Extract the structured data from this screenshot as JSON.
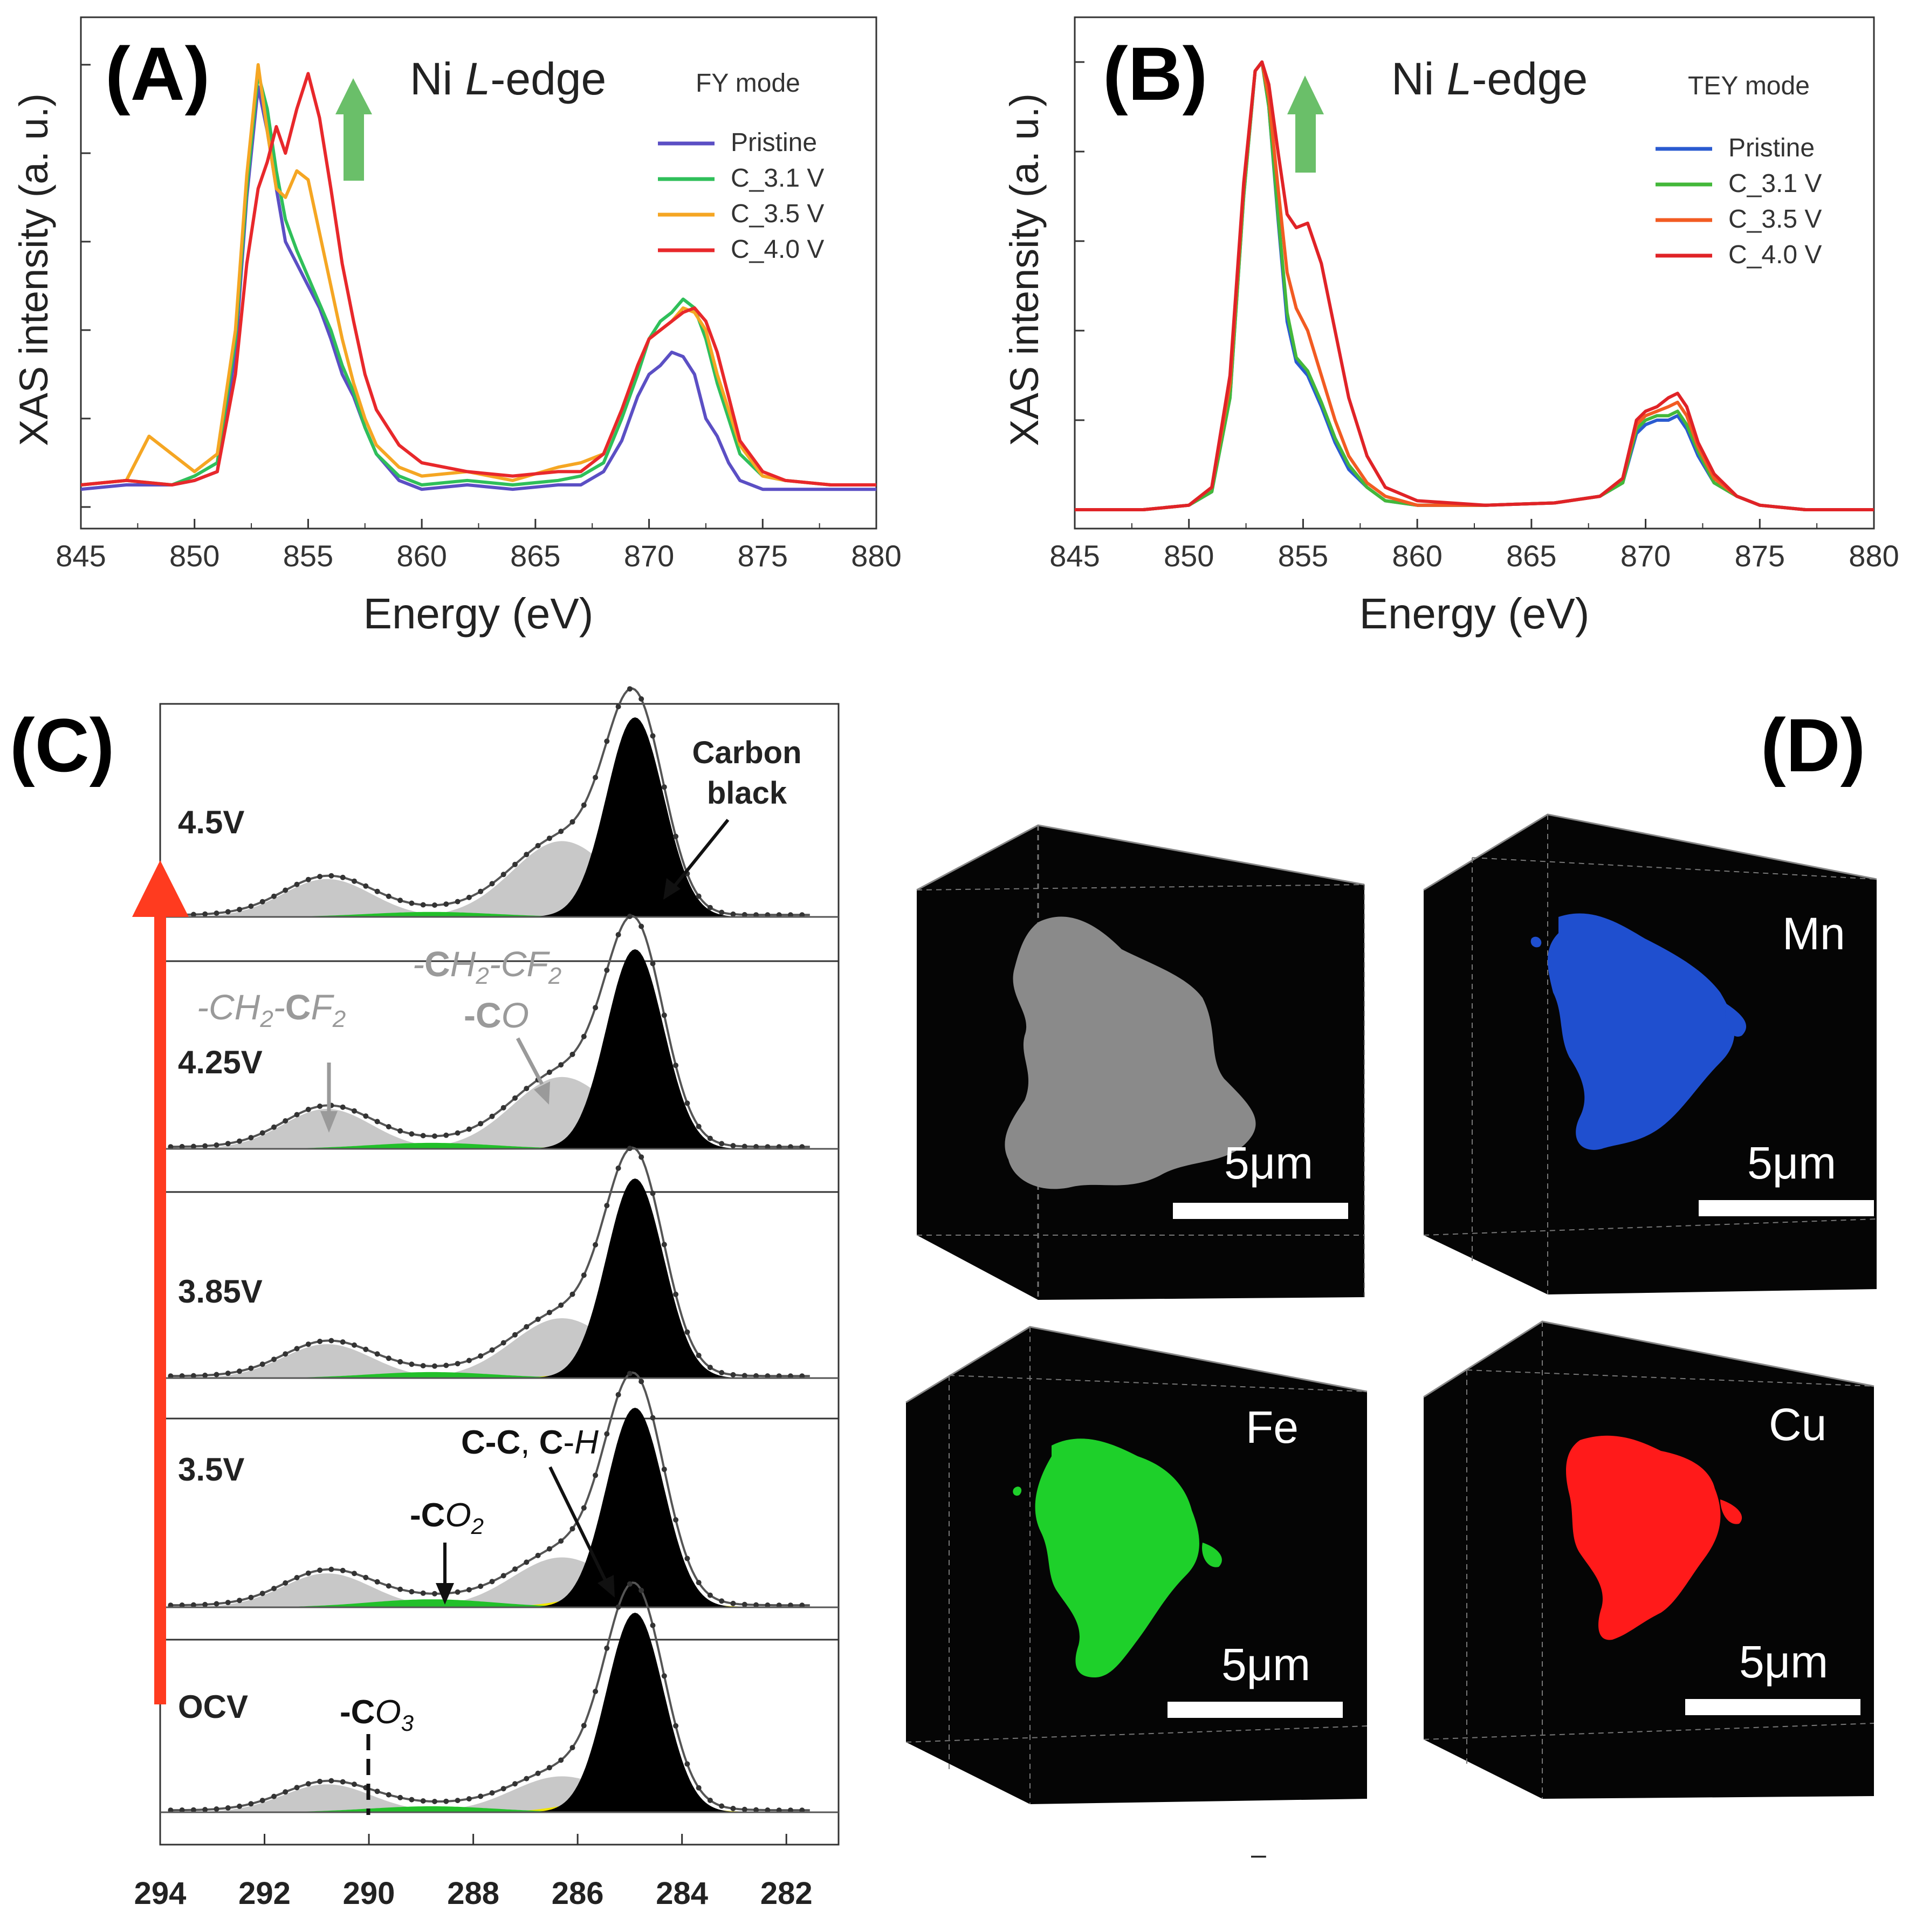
{
  "colors": {
    "pristine": "#5b4fc4",
    "c31": "#2fbf5a",
    "c35": "#f5a623",
    "c40": "#e8282b",
    "pristineB": "#2a5bd0",
    "c31B": "#43b83a",
    "c35B": "#f25b22",
    "c40B": "#e02327",
    "arrowGreen": "#6abf69",
    "arrowRed": "#ff3b1f",
    "mn": "#1f4fcf",
    "fe": "#1ed02a",
    "cu": "#ff1a1a",
    "gray_particle": "#8a8a8a"
  },
  "panels": {
    "A": {
      "letter": "(A)",
      "title_pre": "Ni ",
      "title_it": "L",
      "title_post": "-edge",
      "mode": "FY mode"
    },
    "B": {
      "letter": "(B)",
      "title_pre": "Ni ",
      "title_it": "L",
      "title_post": "-edge",
      "mode": "TEY mode"
    },
    "C": {
      "letter": "(C)"
    },
    "D": {
      "letter": "(D)"
    }
  },
  "chart_data": [
    {
      "id": "A",
      "type": "line",
      "xlabel": "Energy (eV)",
      "ylabel": "XAS intensity (a. u.)",
      "xlim": [
        845,
        880
      ],
      "xticks": [
        "845",
        "850",
        "855",
        "860",
        "865",
        "870",
        "875",
        "880"
      ],
      "series": [
        {
          "name": "Pristine",
          "color_key": "pristine",
          "x": [
            845,
            847,
            849,
            850,
            851,
            851.8,
            852.3,
            852.8,
            853.2,
            853.6,
            854,
            854.5,
            855,
            855.5,
            856,
            856.5,
            857,
            857.5,
            858,
            859,
            860,
            862,
            864,
            866,
            867,
            868,
            868.8,
            869.5,
            870,
            870.5,
            871,
            871.5,
            872,
            872.5,
            873,
            873.5,
            874,
            875,
            876,
            878,
            880
          ],
          "y": [
            0.04,
            0.05,
            0.05,
            0.06,
            0.08,
            0.35,
            0.7,
            0.95,
            0.85,
            0.72,
            0.6,
            0.55,
            0.5,
            0.45,
            0.38,
            0.3,
            0.25,
            0.18,
            0.12,
            0.06,
            0.04,
            0.05,
            0.04,
            0.05,
            0.05,
            0.08,
            0.15,
            0.25,
            0.3,
            0.32,
            0.35,
            0.34,
            0.3,
            0.2,
            0.16,
            0.1,
            0.06,
            0.04,
            0.04,
            0.04,
            0.04
          ]
        },
        {
          "name": "C_3.1 V",
          "color_key": "c31",
          "x": [
            845,
            847,
            849,
            850,
            851,
            851.8,
            852.3,
            852.8,
            853.2,
            853.6,
            854,
            854.5,
            855,
            855.5,
            856,
            856.5,
            857,
            857.5,
            858,
            859,
            860,
            862,
            864,
            866,
            867,
            868,
            868.8,
            869.5,
            870,
            870.5,
            871,
            871.5,
            872,
            872.5,
            873,
            873.5,
            874,
            875,
            876,
            878,
            880
          ],
          "y": [
            0.05,
            0.06,
            0.05,
            0.07,
            0.1,
            0.38,
            0.72,
            0.98,
            0.9,
            0.76,
            0.65,
            0.58,
            0.52,
            0.46,
            0.4,
            0.32,
            0.26,
            0.18,
            0.12,
            0.07,
            0.05,
            0.06,
            0.05,
            0.06,
            0.07,
            0.1,
            0.2,
            0.3,
            0.38,
            0.42,
            0.44,
            0.47,
            0.45,
            0.38,
            0.28,
            0.2,
            0.12,
            0.07,
            0.06,
            0.05,
            0.05
          ]
        },
        {
          "name": "C_3.5 V",
          "color_key": "c35",
          "x": [
            845,
            847,
            848,
            849,
            850,
            851,
            851.8,
            852.3,
            852.8,
            853.2,
            853.6,
            854,
            854.5,
            855,
            855.5,
            856,
            856.5,
            857,
            857.5,
            858,
            859,
            860,
            862,
            864,
            866,
            867,
            868,
            868.8,
            869.5,
            870,
            870.5,
            871,
            871.5,
            872,
            872.5,
            873,
            873.5,
            874,
            875,
            876,
            878,
            880
          ],
          "y": [
            0.05,
            0.06,
            0.16,
            0.12,
            0.08,
            0.12,
            0.4,
            0.75,
            1.0,
            0.85,
            0.72,
            0.7,
            0.76,
            0.74,
            0.62,
            0.5,
            0.38,
            0.28,
            0.2,
            0.14,
            0.09,
            0.07,
            0.08,
            0.06,
            0.09,
            0.1,
            0.12,
            0.22,
            0.32,
            0.38,
            0.4,
            0.42,
            0.45,
            0.44,
            0.4,
            0.3,
            0.22,
            0.14,
            0.07,
            0.06,
            0.05,
            0.05
          ]
        },
        {
          "name": "C_4.0 V",
          "color_key": "c40",
          "x": [
            845,
            847,
            849,
            850,
            851,
            851.8,
            852.3,
            852.8,
            853.2,
            853.6,
            854,
            854.5,
            855,
            855.5,
            856,
            856.5,
            857,
            857.5,
            858,
            859,
            860,
            862,
            864,
            866,
            867,
            868,
            868.8,
            869.5,
            870,
            870.5,
            871,
            871.5,
            872,
            872.5,
            873,
            873.5,
            874,
            875,
            876,
            878,
            880
          ],
          "y": [
            0.05,
            0.06,
            0.05,
            0.06,
            0.08,
            0.3,
            0.55,
            0.72,
            0.78,
            0.86,
            0.8,
            0.9,
            0.98,
            0.88,
            0.72,
            0.55,
            0.42,
            0.3,
            0.22,
            0.14,
            0.1,
            0.08,
            0.07,
            0.08,
            0.08,
            0.12,
            0.22,
            0.32,
            0.38,
            0.4,
            0.42,
            0.44,
            0.45,
            0.42,
            0.35,
            0.25,
            0.15,
            0.08,
            0.06,
            0.05,
            0.05
          ]
        }
      ]
    },
    {
      "id": "B",
      "type": "line",
      "xlabel": "Energy (eV)",
      "ylabel": "XAS intensity (a. u.)",
      "xlim": [
        845,
        880
      ],
      "xticks": [
        "845",
        "850",
        "855",
        "860",
        "865",
        "870",
        "875",
        "880"
      ],
      "series": [
        {
          "name": "Pristine",
          "color_key": "pristineB",
          "x": [
            845,
            848,
            850,
            851,
            851.8,
            852.4,
            852.9,
            853.2,
            853.5,
            853.9,
            854.3,
            854.7,
            855.2,
            855.8,
            856.4,
            857,
            857.8,
            858.6,
            860,
            863,
            866,
            868,
            869,
            869.6,
            870,
            870.5,
            871,
            871.4,
            871.8,
            872.3,
            873,
            874,
            875,
            877,
            880
          ],
          "y": [
            0.0,
            0.0,
            0.01,
            0.04,
            0.25,
            0.7,
            0.98,
            1.0,
            0.9,
            0.65,
            0.42,
            0.33,
            0.3,
            0.23,
            0.15,
            0.09,
            0.05,
            0.02,
            0.01,
            0.01,
            0.015,
            0.03,
            0.06,
            0.17,
            0.19,
            0.2,
            0.2,
            0.21,
            0.18,
            0.12,
            0.06,
            0.03,
            0.01,
            0.0,
            0.0
          ]
        },
        {
          "name": "C_3.1 V",
          "color_key": "c31B",
          "x": [
            845,
            848,
            850,
            851,
            851.8,
            852.4,
            852.9,
            853.2,
            853.5,
            853.9,
            854.3,
            854.7,
            855.2,
            855.8,
            856.4,
            857,
            857.8,
            858.6,
            860,
            863,
            866,
            868,
            869,
            869.6,
            870,
            870.5,
            871,
            871.4,
            871.8,
            872.3,
            873,
            874,
            875,
            877,
            880
          ],
          "y": [
            0.0,
            0.0,
            0.01,
            0.04,
            0.25,
            0.7,
            0.98,
            1.0,
            0.9,
            0.66,
            0.44,
            0.34,
            0.31,
            0.24,
            0.16,
            0.1,
            0.05,
            0.02,
            0.01,
            0.01,
            0.015,
            0.03,
            0.06,
            0.18,
            0.2,
            0.21,
            0.21,
            0.22,
            0.19,
            0.13,
            0.06,
            0.03,
            0.01,
            0.0,
            0.0
          ]
        },
        {
          "name": "C_3.5 V",
          "color_key": "c35B",
          "x": [
            845,
            848,
            850,
            851,
            851.8,
            852.4,
            852.9,
            853.2,
            853.5,
            853.9,
            854.3,
            854.7,
            855.2,
            855.8,
            856.4,
            857,
            857.8,
            858.6,
            860,
            863,
            866,
            868,
            869,
            869.6,
            870,
            870.5,
            871,
            871.4,
            871.8,
            872.3,
            873,
            874,
            875,
            877,
            880
          ],
          "y": [
            0.0,
            0.0,
            0.01,
            0.05,
            0.28,
            0.72,
            0.98,
            1.0,
            0.92,
            0.72,
            0.53,
            0.45,
            0.4,
            0.3,
            0.2,
            0.12,
            0.06,
            0.03,
            0.01,
            0.01,
            0.015,
            0.03,
            0.07,
            0.19,
            0.21,
            0.22,
            0.23,
            0.24,
            0.21,
            0.14,
            0.07,
            0.03,
            0.01,
            0.0,
            0.0
          ]
        },
        {
          "name": "C_4.0 V",
          "color_key": "c40B",
          "x": [
            845,
            848,
            850,
            851,
            851.8,
            852.4,
            852.9,
            853.2,
            853.5,
            853.9,
            854.3,
            854.7,
            855.2,
            855.8,
            856.4,
            857,
            857.8,
            858.6,
            860,
            863,
            866,
            868,
            869,
            869.6,
            870,
            870.5,
            871,
            871.4,
            871.8,
            872.3,
            873,
            874,
            875,
            877,
            880
          ],
          "y": [
            0.0,
            0.0,
            0.01,
            0.05,
            0.3,
            0.73,
            0.98,
            1.0,
            0.95,
            0.8,
            0.66,
            0.63,
            0.64,
            0.55,
            0.4,
            0.25,
            0.12,
            0.05,
            0.02,
            0.01,
            0.015,
            0.03,
            0.07,
            0.2,
            0.22,
            0.23,
            0.25,
            0.26,
            0.23,
            0.15,
            0.08,
            0.03,
            0.01,
            0.0,
            0.0
          ]
        }
      ]
    },
    {
      "id": "C",
      "type": "area",
      "xlim": [
        294,
        281
      ],
      "xticks": [
        "294",
        "292",
        "290",
        "288",
        "286",
        "284",
        "282"
      ],
      "voltages": [
        "4.5V",
        "4.25V",
        "3.85V",
        "3.5V",
        "OCV"
      ],
      "components": {
        "carbon_black": {
          "center": 284.9,
          "width": 0.55
        },
        "CH2_CF2_CO": {
          "center": 286.3,
          "width": 0.95
        },
        "CF2": {
          "center": 290.8,
          "width": 0.85
        },
        "CO2": {
          "center": 288.8,
          "width": 1.2
        },
        "CC_CH": {
          "center": 285.1,
          "width": 0.9
        }
      },
      "amplitudes": [
        {
          "label": "4.5V",
          "cb": 1.0,
          "co": 0.38,
          "cf": 0.19,
          "co2": 0.025,
          "cc": 0.0
        },
        {
          "label": "4.25V",
          "cb": 1.0,
          "co": 0.36,
          "cf": 0.2,
          "co2": 0.03,
          "cc": 0.03
        },
        {
          "label": "3.85V",
          "cb": 1.0,
          "co": 0.3,
          "cf": 0.17,
          "co2": 0.03,
          "cc": 0.04
        },
        {
          "label": "3.5V",
          "cb": 1.0,
          "co": 0.25,
          "cf": 0.17,
          "co2": 0.04,
          "cc": 0.08
        },
        {
          "label": "OCV",
          "cb": 1.0,
          "co": 0.18,
          "cf": 0.14,
          "co2": 0.03,
          "cc": 0.08
        }
      ],
      "annotations": {
        "carbon_black": "Carbon\nblack",
        "cf2_a": "-CH",
        "cf2_b": "2",
        "cf2_c": "-",
        "cf2_d": "C",
        "cf2_e": "F",
        "cf2_f": "2",
        "co_top_a": "-",
        "co_top_b": "C",
        "co_top_c": "H",
        "co_top_d": "2",
        "co_top_e": "-CF",
        "co_top_f": "2",
        "co_bot_a": "-",
        "co_bot_b": "C",
        "co_bot_c": "O",
        "cc_a": "C",
        "cc_b": "-",
        "cc_c": "C",
        "cc_d": ", ",
        "cc_e": "C",
        "cc_f": "-",
        "cc_g": "H",
        "co2_a": "-",
        "co2_b": "C",
        "co2_c": "O",
        "co2_d": "2",
        "co3_a": "-",
        "co3_b": "C",
        "co3_c": "O",
        "co3_d": "3"
      }
    }
  ],
  "panelD": {
    "scale_label": "5μm",
    "elements": [
      "",
      "Mn",
      "Fe",
      "Cu"
    ],
    "tiny_mark": "–"
  }
}
